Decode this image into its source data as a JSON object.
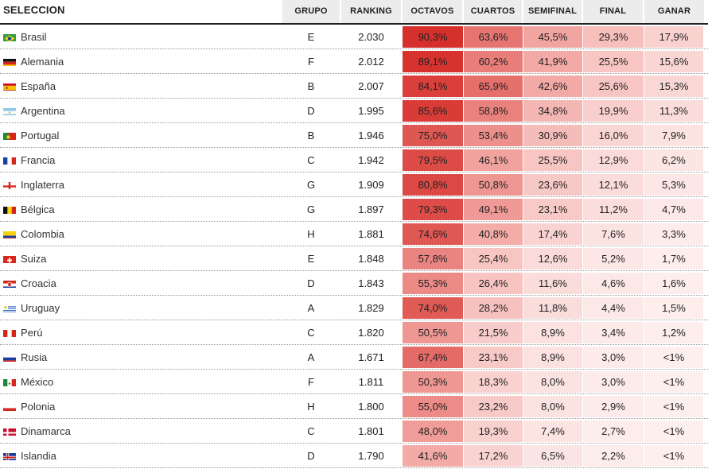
{
  "chart_data": {
    "type": "table",
    "columns": [
      "SELECCION",
      "GRUPO",
      "RANKING",
      "OCTAVOS",
      "CUARTOS",
      "SEMIFINAL",
      "FINAL",
      "GANAR"
    ],
    "rows": [
      {
        "team": "Brasil",
        "flag": "brazil",
        "group": "E",
        "ranking": "2.030",
        "octavos": "90,3%",
        "cuartos": "63,6%",
        "semifinal": "45,5%",
        "final": "29,3%",
        "ganar": "17,9%",
        "vals": [
          90.3,
          63.6,
          45.5,
          29.3,
          17.9
        ]
      },
      {
        "team": "Alemania",
        "flag": "germany",
        "group": "F",
        "ranking": "2.012",
        "octavos": "89,1%",
        "cuartos": "60,2%",
        "semifinal": "41,9%",
        "final": "25,5%",
        "ganar": "15,6%",
        "vals": [
          89.1,
          60.2,
          41.9,
          25.5,
          15.6
        ]
      },
      {
        "team": "España",
        "flag": "spain",
        "group": "B",
        "ranking": "2.007",
        "octavos": "84,1%",
        "cuartos": "65,9%",
        "semifinal": "42,6%",
        "final": "25,6%",
        "ganar": "15,3%",
        "vals": [
          84.1,
          65.9,
          42.6,
          25.6,
          15.3
        ]
      },
      {
        "team": "Argentina",
        "flag": "argentina",
        "group": "D",
        "ranking": "1.995",
        "octavos": "85,6%",
        "cuartos": "58,8%",
        "semifinal": "34,8%",
        "final": "19,9%",
        "ganar": "11,3%",
        "vals": [
          85.6,
          58.8,
          34.8,
          19.9,
          11.3
        ]
      },
      {
        "team": "Portugal",
        "flag": "portugal",
        "group": "B",
        "ranking": "1.946",
        "octavos": "75,0%",
        "cuartos": "53,4%",
        "semifinal": "30,9%",
        "final": "16,0%",
        "ganar": "7,9%",
        "vals": [
          75.0,
          53.4,
          30.9,
          16.0,
          7.9
        ]
      },
      {
        "team": "Francia",
        "flag": "france",
        "group": "C",
        "ranking": "1.942",
        "octavos": "79,5%",
        "cuartos": "46,1%",
        "semifinal": "25,5%",
        "final": "12,9%",
        "ganar": "6,2%",
        "vals": [
          79.5,
          46.1,
          25.5,
          12.9,
          6.2
        ]
      },
      {
        "team": "Inglaterra",
        "flag": "england",
        "group": "G",
        "ranking": "1.909",
        "octavos": "80,8%",
        "cuartos": "50,8%",
        "semifinal": "23,6%",
        "final": "12,1%",
        "ganar": "5,3%",
        "vals": [
          80.8,
          50.8,
          23.6,
          12.1,
          5.3
        ]
      },
      {
        "team": "Bélgica",
        "flag": "belgium",
        "group": "G",
        "ranking": "1.897",
        "octavos": "79,3%",
        "cuartos": "49,1%",
        "semifinal": "23,1%",
        "final": "11,2%",
        "ganar": "4,7%",
        "vals": [
          79.3,
          49.1,
          23.1,
          11.2,
          4.7
        ]
      },
      {
        "team": "Colombia",
        "flag": "colombia",
        "group": "H",
        "ranking": "1.881",
        "octavos": "74,6%",
        "cuartos": "40,8%",
        "semifinal": "17,4%",
        "final": "7,6%",
        "ganar": "3,3%",
        "vals": [
          74.6,
          40.8,
          17.4,
          7.6,
          3.3
        ]
      },
      {
        "team": "Suiza",
        "flag": "switzerland",
        "group": "E",
        "ranking": "1.848",
        "octavos": "57,8%",
        "cuartos": "25,4%",
        "semifinal": "12,6%",
        "final": "5,2%",
        "ganar": "1,7%",
        "vals": [
          57.8,
          25.4,
          12.6,
          5.2,
          1.7
        ]
      },
      {
        "team": "Croacia",
        "flag": "croatia",
        "group": "D",
        "ranking": "1.843",
        "octavos": "55,3%",
        "cuartos": "26,4%",
        "semifinal": "11,6%",
        "final": "4,6%",
        "ganar": "1,6%",
        "vals": [
          55.3,
          26.4,
          11.6,
          4.6,
          1.6
        ]
      },
      {
        "team": "Uruguay",
        "flag": "uruguay",
        "group": "A",
        "ranking": "1.829",
        "octavos": "74,0%",
        "cuartos": "28,2%",
        "semifinal": "11,8%",
        "final": "4,4%",
        "ganar": "1,5%",
        "vals": [
          74.0,
          28.2,
          11.8,
          4.4,
          1.5
        ]
      },
      {
        "team": "Perú",
        "flag": "peru",
        "group": "C",
        "ranking": "1.820",
        "octavos": "50,5%",
        "cuartos": "21,5%",
        "semifinal": "8,9%",
        "final": "3,4%",
        "ganar": "1,2%",
        "vals": [
          50.5,
          21.5,
          8.9,
          3.4,
          1.2
        ]
      },
      {
        "team": "Rusia",
        "flag": "russia",
        "group": "A",
        "ranking": "1.671",
        "octavos": "67,4%",
        "cuartos": "23,1%",
        "semifinal": "8,9%",
        "final": "3,0%",
        "ganar": "<1%",
        "vals": [
          67.4,
          23.1,
          8.9,
          3.0,
          0.5
        ]
      },
      {
        "team": "México",
        "flag": "mexico",
        "group": "F",
        "ranking": "1.811",
        "octavos": "50,3%",
        "cuartos": "18,3%",
        "semifinal": "8,0%",
        "final": "3,0%",
        "ganar": "<1%",
        "vals": [
          50.3,
          18.3,
          8.0,
          3.0,
          0.5
        ]
      },
      {
        "team": "Polonia",
        "flag": "poland",
        "group": "H",
        "ranking": "1.800",
        "octavos": "55,0%",
        "cuartos": "23,2%",
        "semifinal": "8,0%",
        "final": "2,9%",
        "ganar": "<1%",
        "vals": [
          55.0,
          23.2,
          8.0,
          2.9,
          0.5
        ]
      },
      {
        "team": "Dinamarca",
        "flag": "denmark",
        "group": "C",
        "ranking": "1.801",
        "octavos": "48,0%",
        "cuartos": "19,3%",
        "semifinal": "7,4%",
        "final": "2,7%",
        "ganar": "<1%",
        "vals": [
          48.0,
          19.3,
          7.4,
          2.7,
          0.5
        ]
      },
      {
        "team": "Islandia",
        "flag": "iceland",
        "group": "D",
        "ranking": "1.790",
        "octavos": "41,6%",
        "cuartos": "17,2%",
        "semifinal": "6,5%",
        "final": "2,2%",
        "ganar": "<1%",
        "vals": [
          41.6,
          17.2,
          6.5,
          2.2,
          0.5
        ]
      }
    ],
    "heat_colors": {
      "low": "#fdf0ef",
      "mid": "#f2a5a1",
      "high": "#d6302c"
    }
  }
}
